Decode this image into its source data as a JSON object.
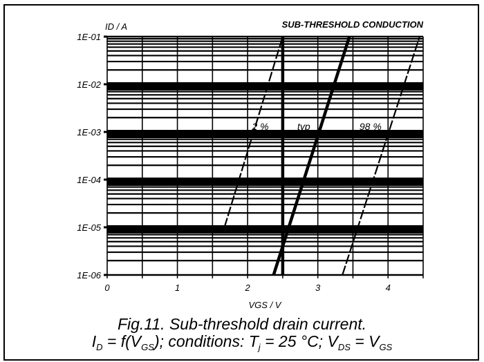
{
  "chart_data": {
    "type": "line",
    "title": "SUB-THRESHOLD CONDUCTION",
    "xlabel": "VGS / V",
    "ylabel": "ID / A",
    "xlim": [
      0,
      4.5
    ],
    "ylim": [
      1e-06,
      0.1
    ],
    "yscale": "log",
    "grid": true,
    "x_ticks": [
      "0",
      "1",
      "2",
      "3",
      "4"
    ],
    "y_ticks": [
      "1E-01",
      "1E-02",
      "1E-03",
      "1E-04",
      "1E-05",
      "1E-06"
    ],
    "series": [
      {
        "name": "2 %",
        "x": [
          1.67,
          2.5
        ],
        "y": [
          1e-05,
          0.1
        ],
        "style": "dashed"
      },
      {
        "name": "typ",
        "x": [
          2.37,
          3.45
        ],
        "y": [
          1e-06,
          0.1
        ],
        "style": "solid-thick"
      },
      {
        "name": "98 %",
        "x": [
          3.35,
          4.45
        ],
        "y": [
          1e-06,
          0.1
        ],
        "style": "dashed"
      }
    ]
  },
  "caption": {
    "line1": "Fig.11.  Sub-threshold drain current.",
    "line2_parts": [
      "I",
      "D",
      " = f(V",
      "GS",
      "); conditions: T",
      "j",
      " = 25 °C; V",
      "DS",
      " = V",
      "GS"
    ]
  }
}
